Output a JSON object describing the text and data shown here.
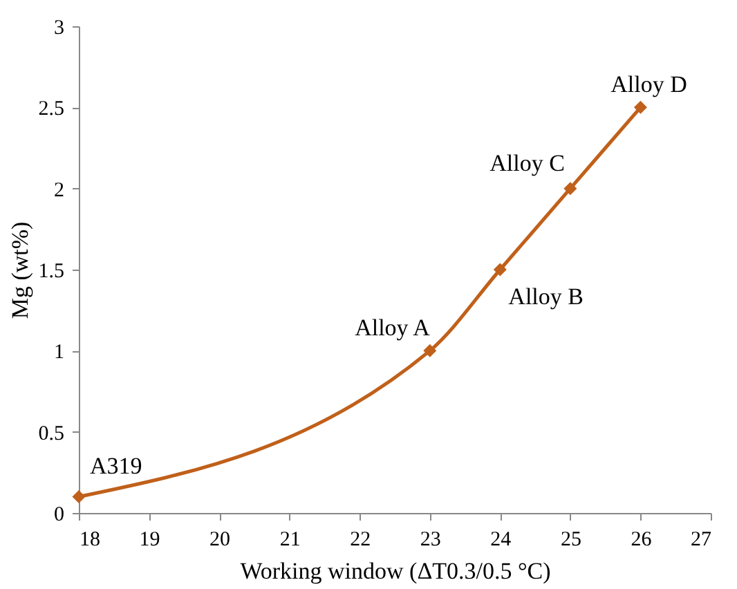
{
  "chart_data": {
    "type": "line",
    "xlabel": "Working window (ΔT0.3/0.5 °C)",
    "ylabel": "Mg (wt%)",
    "x": [
      18,
      23,
      24,
      25,
      26
    ],
    "series": [
      {
        "color": "#c0601a",
        "values": [
          0.1,
          1,
          1.5,
          2,
          2.5
        ]
      }
    ],
    "xlim": [
      18,
      27
    ],
    "xticks": [
      18,
      19,
      20,
      21,
      22,
      23,
      24,
      25,
      26,
      27
    ],
    "ylim": [
      0,
      3
    ],
    "yticks": [
      0,
      0.5,
      1,
      1.5,
      2,
      2.5,
      3
    ],
    "grid": false,
    "marker": "diamond",
    "line_style": "solid",
    "annotations": [
      {
        "text": "A319",
        "x": 18,
        "y": 0.1
      },
      {
        "text": "Alloy A",
        "x": 23,
        "y": 1
      },
      {
        "text": "Alloy B",
        "x": 24,
        "y": 1.5
      },
      {
        "text": "Alloy C",
        "x": 25,
        "y": 2
      },
      {
        "text": "Alloy D",
        "x": 26,
        "y": 2.5
      }
    ]
  }
}
